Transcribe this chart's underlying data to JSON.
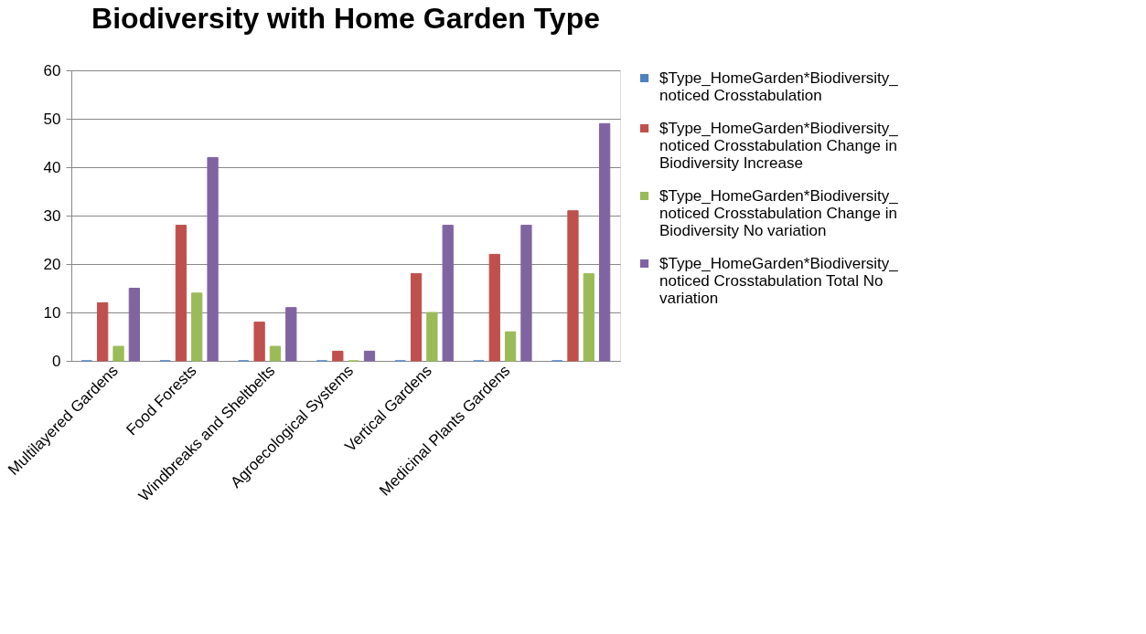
{
  "chart_data": {
    "type": "bar",
    "title": "Biodiversity with Home Garden Type",
    "categories": [
      "Multilayered Gardens",
      "Food Forests",
      "Windbreaks and Sheltbelts",
      "Agroecological Systems",
      "Vertical Gardens",
      "Medicinal Plants Gardens",
      null
    ],
    "series": [
      {
        "name": "$Type_HomeGarden*Biodiversity_noticed Crosstabulation",
        "color": "#4f81bd",
        "values": [
          0,
          0,
          0,
          0,
          0,
          0,
          0
        ]
      },
      {
        "name": "$Type_HomeGarden*Biodiversity_noticed Crosstabulation Change in Biodiversity Increase",
        "color": "#c0504d",
        "values": [
          12,
          28,
          8,
          2,
          18,
          22,
          31
        ]
      },
      {
        "name": "$Type_HomeGarden*Biodiversity_noticed Crosstabulation Change in Biodiversity No variation",
        "color": "#9bbb59",
        "values": [
          3,
          14,
          3,
          0,
          10,
          6,
          18
        ]
      },
      {
        "name": "$Type_HomeGarden*Biodiversity_noticed Crosstabulation Total No variation",
        "color": "#8064a2",
        "values": [
          15,
          42,
          11,
          2,
          28,
          28,
          49
        ]
      }
    ],
    "ylim": [
      0,
      60
    ],
    "yticks": [
      0,
      10,
      20,
      30,
      40,
      50,
      60
    ],
    "grid": "y",
    "legend": "right"
  }
}
